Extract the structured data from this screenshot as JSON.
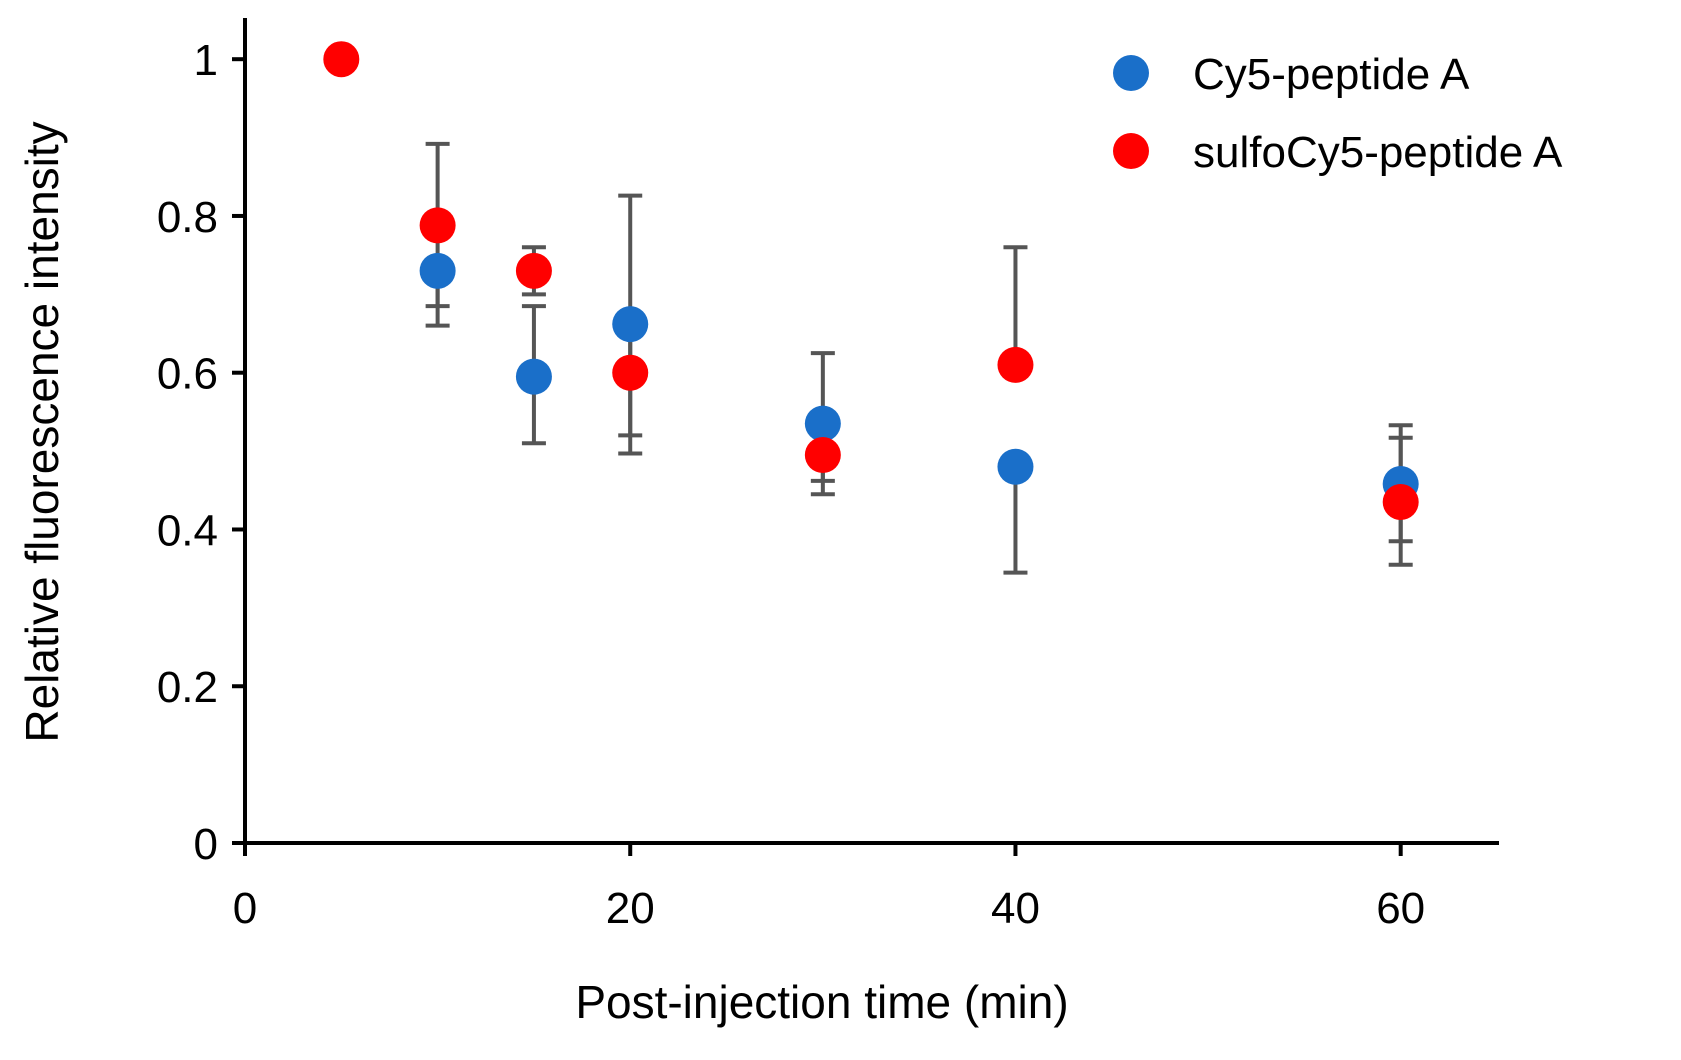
{
  "chart_data": {
    "type": "scatter",
    "title": "",
    "xlabel": "Post-injection time (min)",
    "ylabel": "Relative fluorescence intensity",
    "xlim": [
      0,
      65
    ],
    "ylim": [
      0,
      1.05
    ],
    "xticks": [
      0,
      20,
      40,
      60
    ],
    "xtick_labels": [
      "0",
      "20",
      "40",
      "60"
    ],
    "yticks": [
      0,
      0.2,
      0.4,
      0.6,
      0.8,
      1
    ],
    "ytick_labels": [
      "0",
      "0.2",
      "0.4",
      "0.6",
      "0.8",
      "1"
    ],
    "grid": false,
    "legend_position": "top-right",
    "error_bar_color": "#555555",
    "series": [
      {
        "name": "Cy5-peptide A",
        "color": "#1a6fc9",
        "points": [
          {
            "x": 10,
            "y": 0.73,
            "lo": 0.66,
            "hi": 0.73
          },
          {
            "x": 15,
            "y": 0.595,
            "lo": 0.51,
            "hi": 0.685
          },
          {
            "x": 20,
            "y": 0.662,
            "lo": 0.497,
            "hi": 0.662
          },
          {
            "x": 30,
            "y": 0.535,
            "lo": 0.445,
            "hi": 0.625
          },
          {
            "x": 40,
            "y": 0.48,
            "lo": 0.345,
            "hi": 0.48
          },
          {
            "x": 60,
            "y": 0.458,
            "lo": 0.385,
            "hi": 0.533
          }
        ]
      },
      {
        "name": "sulfoCy5-peptide A",
        "color": "#ff0000",
        "points": [
          {
            "x": 5,
            "y": 1.0,
            "lo": 1.0,
            "hi": 1.0
          },
          {
            "x": 10,
            "y": 0.788,
            "lo": 0.685,
            "hi": 0.892
          },
          {
            "x": 15,
            "y": 0.73,
            "lo": 0.7,
            "hi": 0.76
          },
          {
            "x": 20,
            "y": 0.6,
            "lo": 0.52,
            "hi": 0.826
          },
          {
            "x": 30,
            "y": 0.495,
            "lo": 0.462,
            "hi": 0.495
          },
          {
            "x": 40,
            "y": 0.61,
            "lo": 0.61,
            "hi": 0.76
          },
          {
            "x": 60,
            "y": 0.435,
            "lo": 0.355,
            "hi": 0.517
          }
        ]
      }
    ]
  }
}
